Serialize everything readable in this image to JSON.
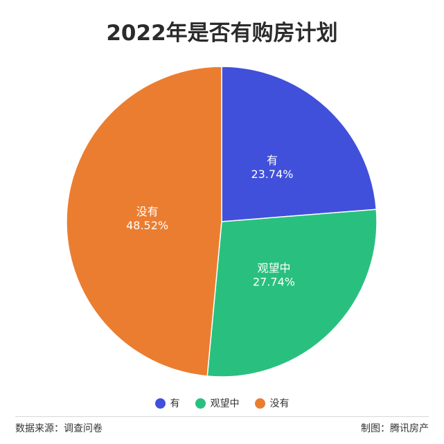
{
  "chart_data": {
    "type": "pie",
    "title": "2022年是否有购房计划",
    "slices": [
      {
        "label": "有",
        "value": 23.74,
        "value_label": "23.74%",
        "color": "#4150DA"
      },
      {
        "label": "观望中",
        "value": 27.74,
        "value_label": "27.74%",
        "color": "#29C07F"
      },
      {
        "label": "没有",
        "value": 48.52,
        "value_label": "48.52%",
        "color": "#EB7D30"
      }
    ],
    "legend_position": "bottom-center"
  },
  "footer": {
    "source": "数据来源：调查问卷",
    "credit": "制图：腾讯房产"
  }
}
